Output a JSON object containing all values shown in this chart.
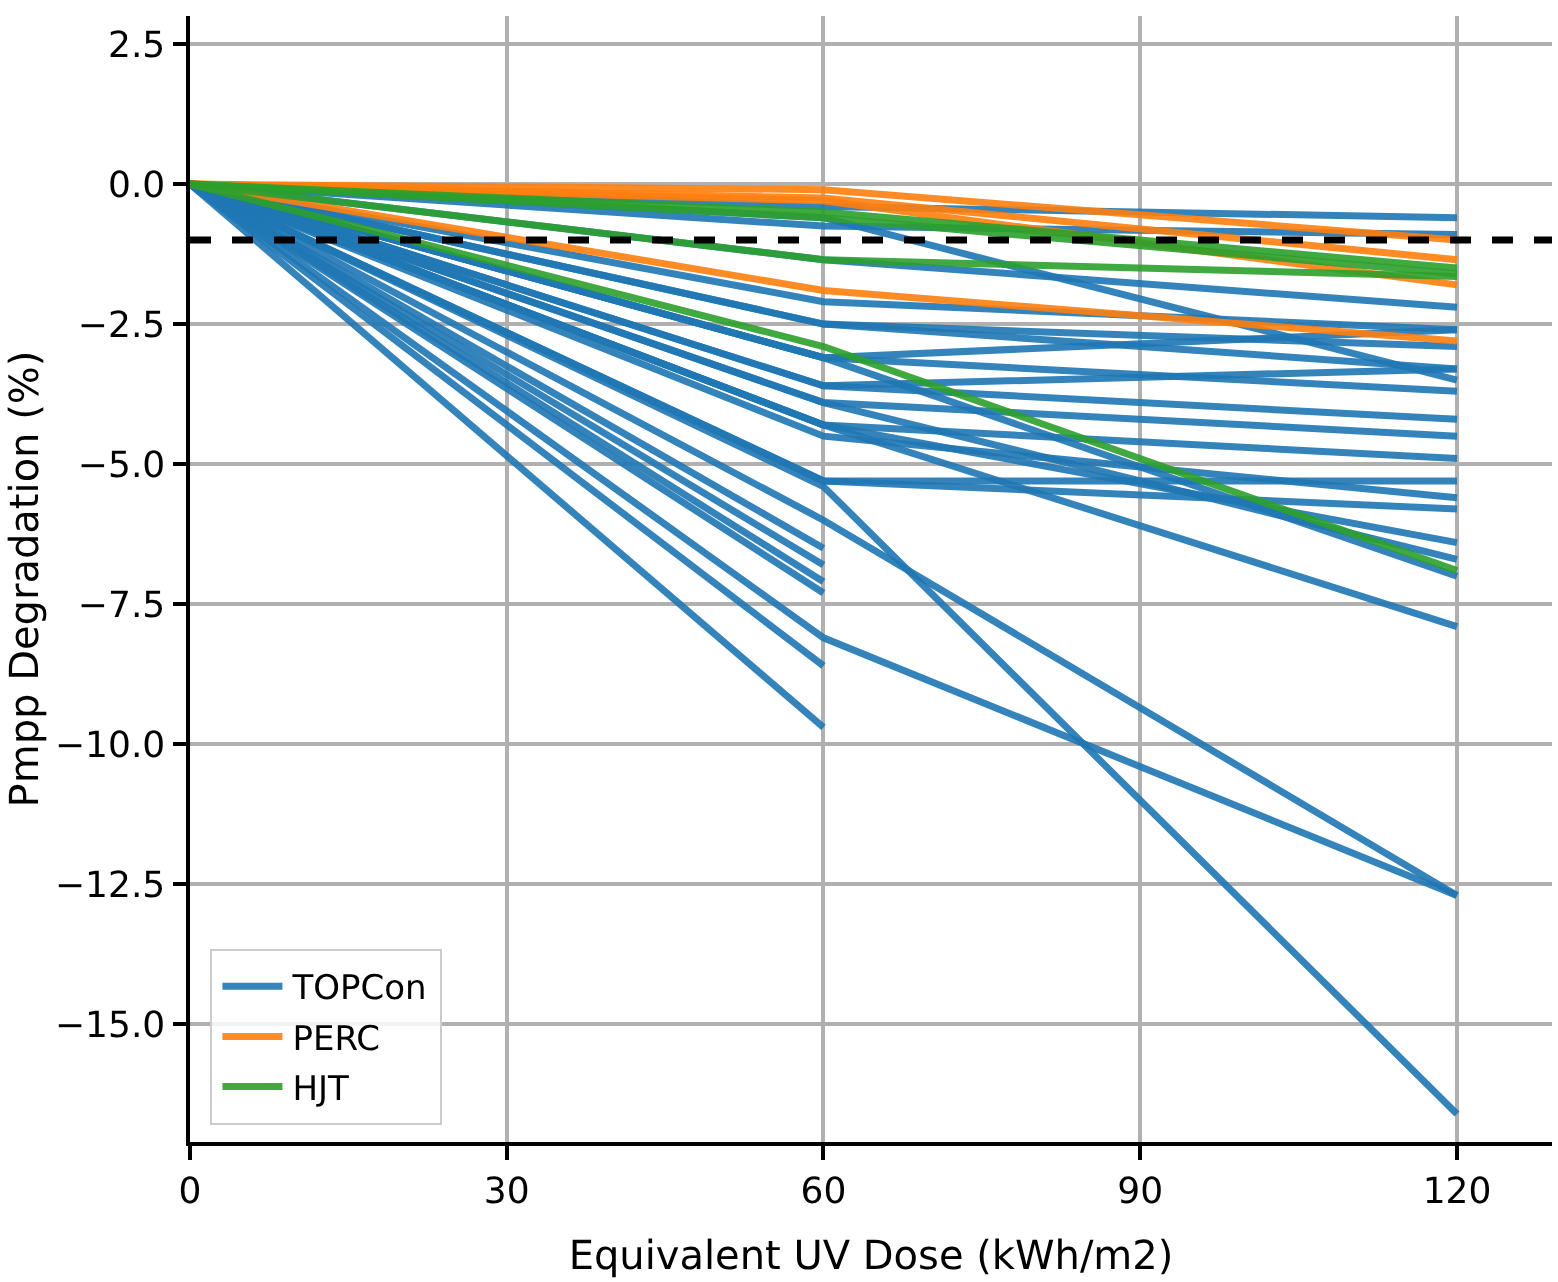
{
  "chart_data": {
    "type": "line",
    "xlabel": "Equivalent UV Dose (kWh/m2)",
    "ylabel": "Pmpp Degradation (%)",
    "x": [
      0,
      60,
      120
    ],
    "xlim": [
      0,
      129
    ],
    "xticks": [
      0,
      30,
      60,
      90,
      120
    ],
    "ylim": [
      -17.1,
      3.0
    ],
    "yticks": [
      2.5,
      {
        "value": 0,
        "label": "0.0"
      },
      {
        "value": -2.5,
        "label": "−2.5"
      },
      {
        "value": -5,
        "label": "−5.0"
      },
      {
        "value": -7.5,
        "label": "−7.5"
      },
      {
        "value": -10,
        "label": "−10.0"
      },
      {
        "value": -12.5,
        "label": "−12.5"
      },
      {
        "value": -15,
        "label": "−15.0"
      }
    ],
    "grid": true,
    "legend": "bottom left",
    "marker": "none",
    "line_style": "solid",
    "ref_lines": [
      {
        "axis": "y",
        "value": -1.0,
        "label": null,
        "color": "#000000",
        "line_style": "dashed"
      }
    ],
    "series": [
      {
        "name": "TOPCon",
        "color": "#1f77b4",
        "values": [
          0,
          -0.4,
          -0.6
        ]
      },
      {
        "color": "#1f77b4",
        "values": [
          0,
          -0.75,
          -0.9
        ]
      },
      {
        "color": "#1f77b4",
        "values": [
          0,
          -1.35,
          -2.2
        ]
      },
      {
        "color": "#1f77b4",
        "values": [
          0,
          -2.1,
          -2.6
        ]
      },
      {
        "color": "#1f77b4",
        "values": [
          0,
          -2.5,
          -2.9
        ]
      },
      {
        "color": "#1f77b4",
        "values": [
          0,
          -2.5,
          -3.3
        ]
      },
      {
        "color": "#1f77b4",
        "values": [
          0,
          -3.1,
          -3.7
        ]
      },
      {
        "color": "#1f77b4",
        "values": [
          0,
          -3.1,
          -2.6
        ]
      },
      {
        "color": "#1f77b4",
        "values": [
          0,
          -3.6,
          -4.2
        ]
      },
      {
        "color": "#1f77b4",
        "values": [
          0,
          -3.6,
          -3.3
        ]
      },
      {
        "color": "#1f77b4",
        "values": [
          0,
          -3.9,
          -4.5
        ]
      },
      {
        "color": "#1f77b4",
        "values": [
          0,
          -4.3,
          -4.9
        ]
      },
      {
        "color": "#1f77b4",
        "values": [
          0,
          -4.5,
          -5.6
        ]
      },
      {
        "color": "#1f77b4",
        "values": [
          0,
          -5.3,
          -5.8
        ]
      },
      {
        "color": "#1f77b4",
        "values": [
          0,
          -5.3,
          -5.3
        ]
      },
      {
        "color": "#1f77b4",
        "values": [
          0,
          -4.3,
          -6.4
        ]
      },
      {
        "color": "#1f77b4",
        "values": [
          0,
          -3.9,
          -6.7
        ]
      },
      {
        "color": "#1f77b4",
        "values": [
          0,
          -3.1,
          -7.0
        ]
      },
      {
        "color": "#1f77b4",
        "values": [
          0,
          -4.3,
          -7.9
        ]
      },
      {
        "color": "#1f77b4",
        "values": [
          0,
          -0.6,
          -3.5
        ]
      },
      {
        "color": "#1f77b4",
        "values": [
          0,
          -5.4,
          -16.6
        ]
      },
      {
        "color": "#1f77b4",
        "values": [
          0,
          -6.0,
          -12.7
        ]
      },
      {
        "color": "#1f77b4",
        "values": [
          0,
          -8.1,
          -12.7
        ]
      },
      {
        "color": "#1f77b4",
        "values": [
          0,
          -6.5,
          null
        ]
      },
      {
        "color": "#1f77b4",
        "values": [
          0,
          -6.8,
          null
        ]
      },
      {
        "color": "#1f77b4",
        "values": [
          0,
          -7.1,
          null
        ]
      },
      {
        "color": "#1f77b4",
        "values": [
          0,
          -7.3,
          null
        ]
      },
      {
        "color": "#1f77b4",
        "values": [
          0,
          -8.6,
          null
        ]
      },
      {
        "color": "#1f77b4",
        "values": [
          0,
          -9.7,
          null
        ]
      },
      {
        "name": "PERC",
        "color": "#ff7f0e",
        "values": [
          0,
          -0.1,
          -1.0
        ]
      },
      {
        "color": "#ff7f0e",
        "values": [
          0,
          -0.25,
          -1.35
        ]
      },
      {
        "color": "#ff7f0e",
        "values": [
          0,
          -0.3,
          -1.8
        ]
      },
      {
        "color": "#ff7f0e",
        "values": [
          0,
          -1.9,
          -2.8
        ]
      },
      {
        "name": "HJT",
        "color": "#2ca02c",
        "values": [
          0,
          -0.5,
          -1.5
        ]
      },
      {
        "color": "#2ca02c",
        "values": [
          0,
          -0.6,
          -1.6
        ]
      },
      {
        "color": "#2ca02c",
        "values": [
          0,
          -1.35,
          -1.65
        ]
      },
      {
        "color": "#2ca02c",
        "values": [
          0,
          -2.9,
          -6.9
        ]
      }
    ]
  }
}
